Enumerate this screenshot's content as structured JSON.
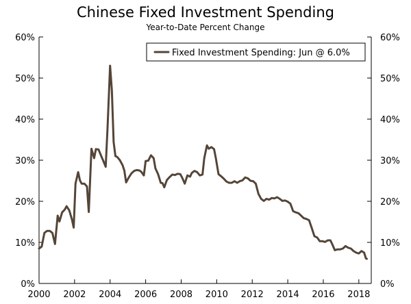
{
  "chart_data": {
    "type": "line",
    "title": "Chinese Fixed Investment Spending",
    "subtitle": "Year-to-Date Percent Change",
    "xlabel": "",
    "ylabel": "",
    "xlim": [
      2000,
      2018.7
    ],
    "ylim": [
      0,
      60
    ],
    "x_ticks": [
      2000,
      2002,
      2004,
      2006,
      2008,
      2010,
      2012,
      2014,
      2016,
      2018
    ],
    "x_tick_labels": [
      "2000",
      "2002",
      "2004",
      "2006",
      "2008",
      "2010",
      "2012",
      "2014",
      "2016",
      "2018"
    ],
    "y_ticks": [
      0,
      10,
      20,
      30,
      40,
      50,
      60
    ],
    "y_tick_labels": [
      "0%",
      "10%",
      "20%",
      "30%",
      "40%",
      "50%",
      "60%"
    ],
    "grid": false,
    "legend_position": "top-right",
    "series": [
      {
        "name": "Fixed Investment Spending: Jun @ 6.0%",
        "color": "#544538",
        "points": [
          [
            2000.0,
            8.5
          ],
          [
            2000.15,
            9.0
          ],
          [
            2000.3,
            12.3
          ],
          [
            2000.45,
            12.8
          ],
          [
            2000.6,
            12.8
          ],
          [
            2000.75,
            12.3
          ],
          [
            2000.9,
            9.6
          ],
          [
            2001.05,
            16.5
          ],
          [
            2001.15,
            15.1
          ],
          [
            2001.3,
            17.3
          ],
          [
            2001.45,
            18.0
          ],
          [
            2001.55,
            18.8
          ],
          [
            2001.7,
            17.8
          ],
          [
            2001.85,
            15.6
          ],
          [
            2001.95,
            13.6
          ],
          [
            2002.05,
            24.3
          ],
          [
            2002.2,
            27.1
          ],
          [
            2002.3,
            25.1
          ],
          [
            2002.4,
            24.3
          ],
          [
            2002.55,
            24.3
          ],
          [
            2002.7,
            23.6
          ],
          [
            2002.8,
            17.4
          ],
          [
            2002.95,
            32.8
          ],
          [
            2003.1,
            30.5
          ],
          [
            2003.2,
            32.7
          ],
          [
            2003.35,
            32.6
          ],
          [
            2003.5,
            31.0
          ],
          [
            2003.6,
            30.0
          ],
          [
            2003.75,
            28.4
          ],
          [
            2003.85,
            37.5
          ],
          [
            2004.0,
            53.0
          ],
          [
            2004.1,
            47.0
          ],
          [
            2004.2,
            34.4
          ],
          [
            2004.3,
            31.0
          ],
          [
            2004.4,
            30.8
          ],
          [
            2004.55,
            30.0
          ],
          [
            2004.7,
            28.8
          ],
          [
            2004.8,
            27.5
          ],
          [
            2004.9,
            24.6
          ],
          [
            2005.05,
            25.8
          ],
          [
            2005.2,
            26.8
          ],
          [
            2005.35,
            27.4
          ],
          [
            2005.5,
            27.6
          ],
          [
            2005.65,
            27.5
          ],
          [
            2005.75,
            27.2
          ],
          [
            2005.9,
            26.3
          ],
          [
            2006.0,
            29.8
          ],
          [
            2006.15,
            29.9
          ],
          [
            2006.3,
            31.2
          ],
          [
            2006.45,
            30.5
          ],
          [
            2006.55,
            28.0
          ],
          [
            2006.7,
            26.6
          ],
          [
            2006.85,
            24.5
          ],
          [
            2006.95,
            24.4
          ],
          [
            2007.05,
            23.4
          ],
          [
            2007.2,
            25.2
          ],
          [
            2007.35,
            25.9
          ],
          [
            2007.5,
            26.5
          ],
          [
            2007.65,
            26.4
          ],
          [
            2007.8,
            26.7
          ],
          [
            2007.95,
            26.6
          ],
          [
            2008.05,
            25.8
          ],
          [
            2008.2,
            24.3
          ],
          [
            2008.35,
            26.3
          ],
          [
            2008.5,
            26.0
          ],
          [
            2008.6,
            26.9
          ],
          [
            2008.75,
            27.4
          ],
          [
            2008.9,
            27.1
          ],
          [
            2009.05,
            26.3
          ],
          [
            2009.2,
            26.5
          ],
          [
            2009.3,
            30.5
          ],
          [
            2009.45,
            33.6
          ],
          [
            2009.55,
            32.8
          ],
          [
            2009.7,
            33.2
          ],
          [
            2009.85,
            32.7
          ],
          [
            2009.95,
            30.5
          ],
          [
            2010.1,
            26.6
          ],
          [
            2010.25,
            26.1
          ],
          [
            2010.4,
            25.5
          ],
          [
            2010.55,
            24.8
          ],
          [
            2010.7,
            24.5
          ],
          [
            2010.85,
            24.5
          ],
          [
            2011.0,
            24.9
          ],
          [
            2011.15,
            24.5
          ],
          [
            2011.3,
            24.9
          ],
          [
            2011.45,
            25.1
          ],
          [
            2011.6,
            25.8
          ],
          [
            2011.75,
            25.6
          ],
          [
            2011.9,
            25.0
          ],
          [
            2012.05,
            24.9
          ],
          [
            2012.2,
            24.3
          ],
          [
            2012.35,
            21.8
          ],
          [
            2012.5,
            20.6
          ],
          [
            2012.65,
            20.1
          ],
          [
            2012.8,
            20.6
          ],
          [
            2012.95,
            20.4
          ],
          [
            2013.1,
            20.8
          ],
          [
            2013.25,
            20.7
          ],
          [
            2013.4,
            21.0
          ],
          [
            2013.55,
            20.6
          ],
          [
            2013.7,
            20.1
          ],
          [
            2013.85,
            20.2
          ],
          [
            2014.0,
            19.9
          ],
          [
            2014.15,
            19.4
          ],
          [
            2014.3,
            17.6
          ],
          [
            2014.45,
            17.3
          ],
          [
            2014.6,
            17.1
          ],
          [
            2014.75,
            16.5
          ],
          [
            2014.9,
            15.9
          ],
          [
            2015.05,
            15.7
          ],
          [
            2015.2,
            15.4
          ],
          [
            2015.35,
            13.5
          ],
          [
            2015.5,
            11.5
          ],
          [
            2015.65,
            11.2
          ],
          [
            2015.8,
            10.3
          ],
          [
            2015.95,
            10.3
          ],
          [
            2016.1,
            10.1
          ],
          [
            2016.25,
            10.5
          ],
          [
            2016.4,
            10.5
          ],
          [
            2016.5,
            9.6
          ],
          [
            2016.65,
            8.1
          ],
          [
            2016.8,
            8.3
          ],
          [
            2016.95,
            8.3
          ],
          [
            2017.1,
            8.5
          ],
          [
            2017.25,
            9.1
          ],
          [
            2017.4,
            8.7
          ],
          [
            2017.55,
            8.5
          ],
          [
            2017.7,
            7.9
          ],
          [
            2017.85,
            7.5
          ],
          [
            2018.0,
            7.3
          ],
          [
            2018.15,
            7.9
          ],
          [
            2018.3,
            7.5
          ],
          [
            2018.4,
            6.1
          ],
          [
            2018.45,
            6.0
          ]
        ]
      }
    ]
  }
}
